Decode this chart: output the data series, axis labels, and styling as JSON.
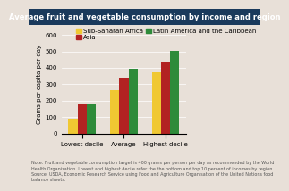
{
  "title": "Average fruit and vegetable consumption by income and region",
  "ylabel": "Grams per capita per day",
  "categories": [
    "Lowest decile",
    "Average",
    "Highest decile"
  ],
  "series": {
    "Sub-Saharan Africa": [
      90,
      265,
      375
    ],
    "Asia": [
      175,
      340,
      440
    ],
    "Latin America and the Caribbean": [
      185,
      395,
      505
    ]
  },
  "colors": {
    "Sub-Saharan Africa": "#f0c832",
    "Asia": "#b22222",
    "Latin America and the Caribbean": "#2e8b3a"
  },
  "ylim": [
    0,
    600
  ],
  "yticks": [
    0,
    100,
    200,
    300,
    400,
    500,
    600
  ],
  "title_bg_color": "#1a3a5c",
  "title_text_color": "#ffffff",
  "plot_bg_color": "#e8e0d8",
  "fig_bg_color": "#e8e0d8",
  "note": "Note: Fruit and vegetable consumption target is 400 grams per person per day as recommended by the World Health Organization. Lowest and highest decile refer the the bottom and top 10 percent of incomes by region. Source: USDA, Economic Research Service using Food and Agriculture Organization of the United Nations food balance sheets.",
  "bar_width": 0.22,
  "title_fontsize": 6.0,
  "legend_fontsize": 5.0,
  "tick_fontsize": 5.0,
  "ylabel_fontsize": 5.0,
  "note_fontsize": 3.5
}
